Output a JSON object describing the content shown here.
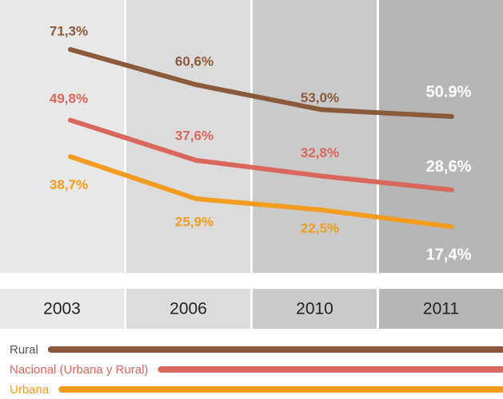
{
  "chart_data": {
    "type": "line",
    "categories": [
      "2003",
      "2006",
      "2010",
      "2011"
    ],
    "series": [
      {
        "name": "Rural",
        "color": "#8a5a3b",
        "values": [
          71.3,
          60.6,
          53.0,
          50.9
        ],
        "value_labels": [
          "71,3%",
          "60,6%",
          "53,0%",
          "50.9%"
        ]
      },
      {
        "name": "Nacional (Urbana y Rural)",
        "color": "#d9675b",
        "values": [
          49.8,
          37.6,
          32.8,
          28.6
        ],
        "value_labels": [
          "49,8%",
          "37,6%",
          "32,8%",
          "28,6%"
        ]
      },
      {
        "name": "Urbana",
        "color": "#f39c1f",
        "values": [
          38.7,
          25.9,
          22.5,
          17.4
        ],
        "value_labels": [
          "38,7%",
          "25,9%",
          "22,5%",
          "17,4%"
        ]
      }
    ]
  }
}
